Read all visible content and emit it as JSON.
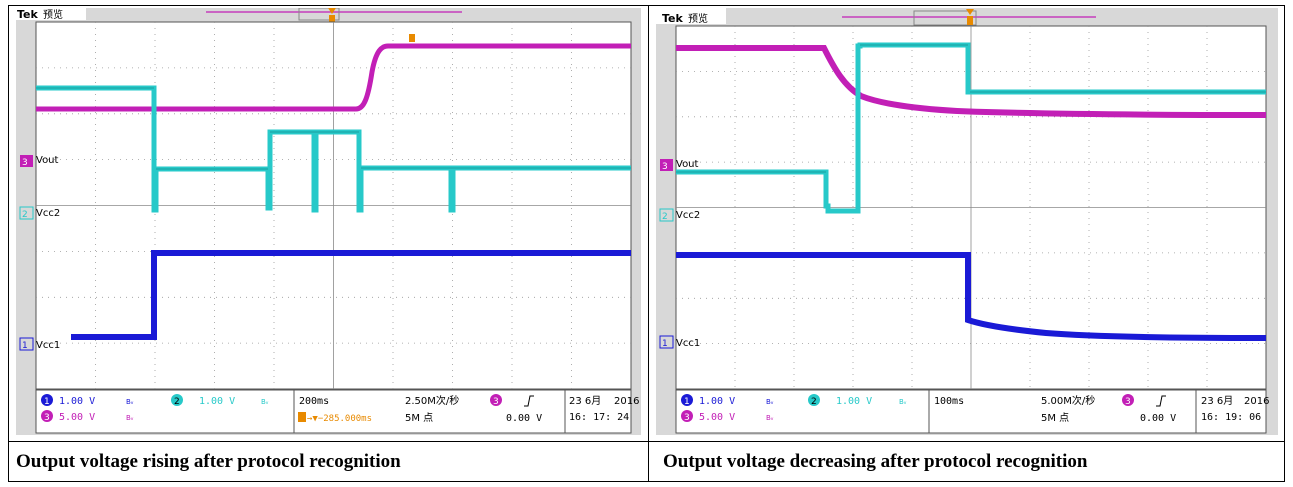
{
  "figure": {
    "left_panel": {
      "caption": "Output voltage rising after protocol recognition",
      "scope": {
        "brand": "Tek",
        "mode": "预览",
        "ch_labels": {
          "ch3": "Vout",
          "ch2": "Vcc2",
          "ch1": "Vcc1"
        },
        "ch1_scale": "1.00 V",
        "ch2_scale": "1.00 V",
        "ch3_scale": "5.00 V",
        "bw_mark": "Bᵥ",
        "timebase": "200ms",
        "sample_rate": "2.50M次/秒",
        "trigger_offset": "→▼−285.000ms",
        "record_length": "5M 点",
        "trigger_channel": "3",
        "trigger_level": "0.00 V",
        "date": "23 6月",
        "year": "2016",
        "time": "16: 17: 24"
      }
    },
    "right_panel": {
      "caption": "Output voltage decreasing after protocol recognition",
      "scope": {
        "brand": "Tek",
        "mode": "预览",
        "ch_labels": {
          "ch3": "Vout",
          "ch2": "Vcc2",
          "ch1": "Vcc1"
        },
        "ch1_scale": "1.00 V",
        "ch2_scale": "1.00 V",
        "ch3_scale": "5.00 V",
        "bw_mark": "Bᵥ",
        "timebase": "100ms",
        "sample_rate": "5.00M次/秒",
        "record_length": "5M 点",
        "trigger_channel": "3",
        "trigger_level": "0.00 V",
        "date": "23 6月",
        "year": "2016",
        "time": "16: 19: 06"
      }
    },
    "colors": {
      "ch1": "#1a1ad6",
      "ch2": "#27c9c9",
      "ch3": "#c21fb6",
      "grid": "#9a9a9a",
      "screen": "#ffffff",
      "bezel": "#d8d8d8"
    }
  }
}
